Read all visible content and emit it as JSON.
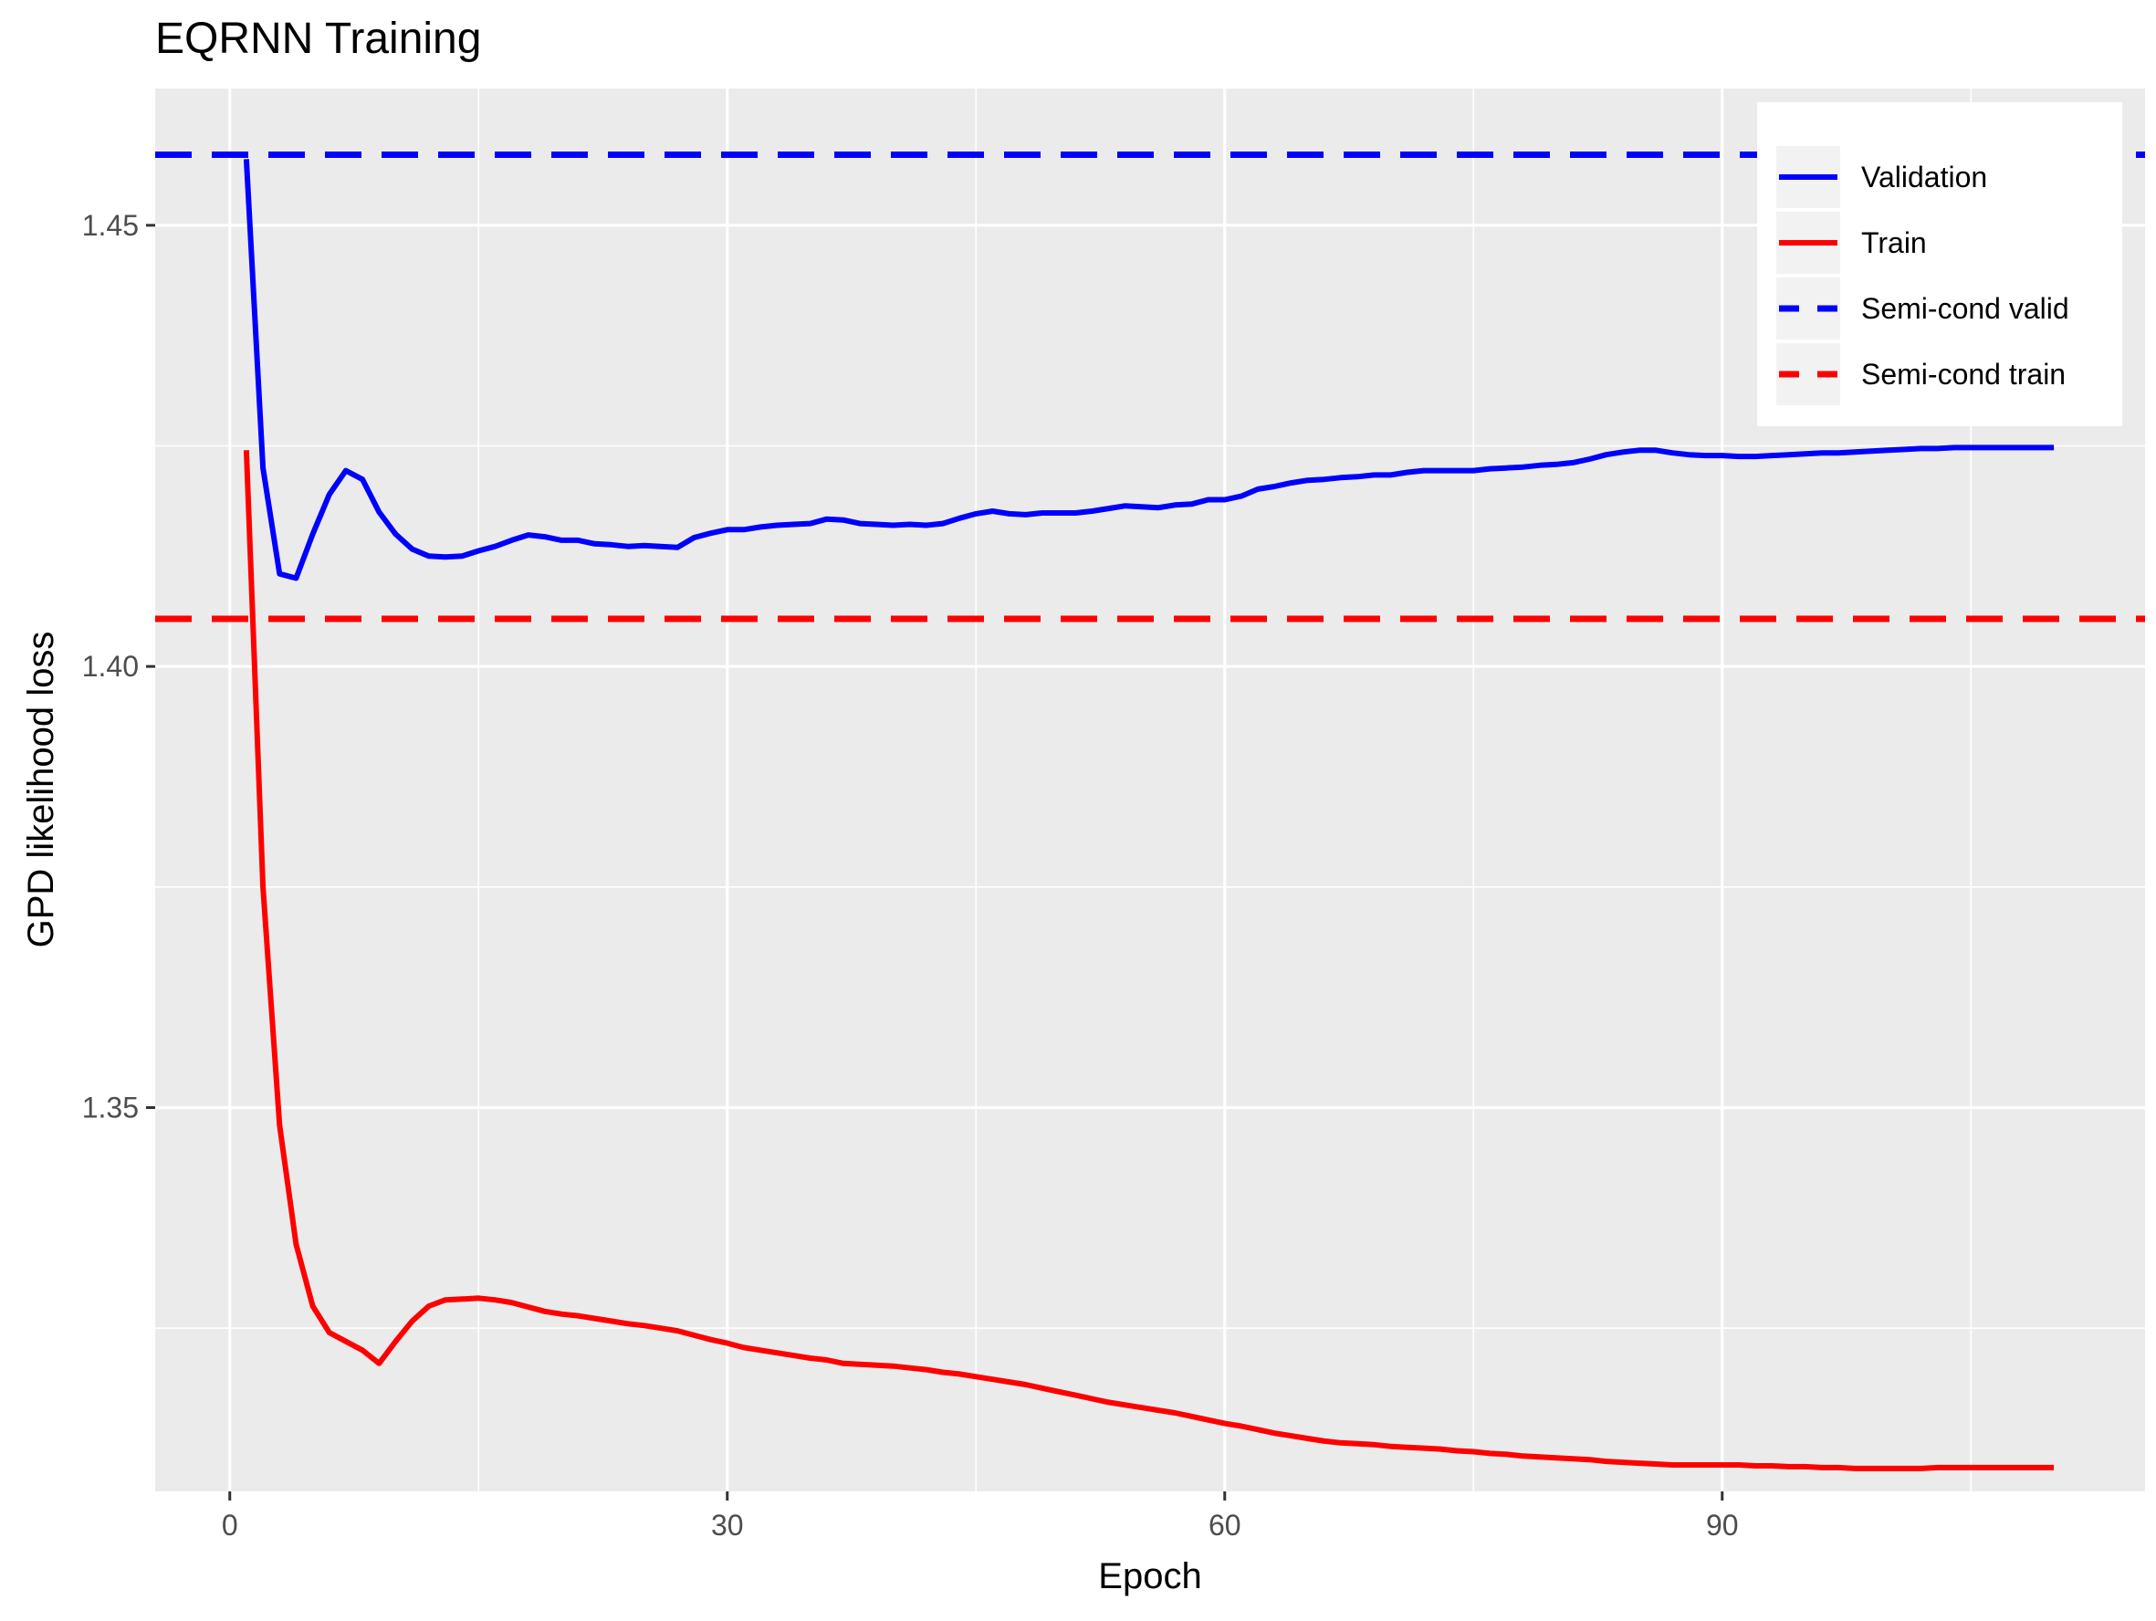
{
  "chart_data": {
    "type": "line",
    "title": "EQRNN Training",
    "xlabel": "Epoch",
    "ylabel": "GPD likelihood loss",
    "xlim": [
      -4.5,
      115.5
    ],
    "ylim": [
      1.3065,
      1.4655
    ],
    "x_ticks": [
      0,
      30,
      60,
      90
    ],
    "y_ticks": [
      1.35,
      1.4,
      1.45
    ],
    "x_tick_labels": [
      "0",
      "30",
      "60",
      "90"
    ],
    "y_tick_labels": [
      "1.35",
      "1.40",
      "1.45"
    ],
    "grid": true,
    "legend_position": "top-right",
    "series": [
      {
        "name": "Validation",
        "color": "#0000ff",
        "style": "solid",
        "x": [
          1,
          2,
          3,
          4,
          5,
          6,
          7,
          8,
          9,
          10,
          11,
          12,
          13,
          14,
          15,
          16,
          17,
          18,
          19,
          20,
          21,
          22,
          23,
          24,
          25,
          26,
          27,
          28,
          29,
          30,
          31,
          32,
          33,
          34,
          35,
          36,
          37,
          38,
          39,
          40,
          41,
          42,
          43,
          44,
          45,
          46,
          47,
          48,
          49,
          50,
          51,
          52,
          53,
          54,
          55,
          56,
          57,
          58,
          59,
          60,
          61,
          62,
          63,
          64,
          65,
          66,
          67,
          68,
          69,
          70,
          71,
          72,
          73,
          74,
          75,
          76,
          77,
          78,
          79,
          80,
          81,
          82,
          83,
          84,
          85,
          86,
          87,
          88,
          89,
          90,
          91,
          92,
          93,
          94,
          95,
          96,
          97,
          98,
          99,
          100,
          101,
          102,
          103,
          104,
          105,
          106,
          107,
          108,
          109,
          110
        ],
        "y": [
          1.4575,
          1.4225,
          1.4105,
          1.41,
          1.415,
          1.4195,
          1.4222,
          1.4212,
          1.4175,
          1.415,
          1.4133,
          1.4125,
          1.4124,
          1.4125,
          1.4131,
          1.4136,
          1.4143,
          1.4149,
          1.4147,
          1.4143,
          1.4143,
          1.4139,
          1.4138,
          1.4136,
          1.4137,
          1.4136,
          1.4135,
          1.4146,
          1.4151,
          1.4155,
          1.4155,
          1.4158,
          1.416,
          1.4161,
          1.4162,
          1.4167,
          1.4166,
          1.4162,
          1.4161,
          1.416,
          1.4161,
          1.416,
          1.4162,
          1.4168,
          1.4173,
          1.4176,
          1.4173,
          1.4172,
          1.4174,
          1.4174,
          1.4174,
          1.4176,
          1.4179,
          1.4182,
          1.4181,
          1.418,
          1.4183,
          1.4184,
          1.4189,
          1.4189,
          1.4193,
          1.4201,
          1.4204,
          1.4208,
          1.4211,
          1.4212,
          1.4214,
          1.4215,
          1.4217,
          1.4217,
          1.422,
          1.4222,
          1.4222,
          1.4222,
          1.4222,
          1.4224,
          1.4225,
          1.4226,
          1.4228,
          1.4229,
          1.4231,
          1.4235,
          1.424,
          1.4243,
          1.4245,
          1.4245,
          1.4242,
          1.424,
          1.4239,
          1.4239,
          1.4238,
          1.4238,
          1.4239,
          1.424,
          1.4241,
          1.4242,
          1.4242,
          1.4243,
          1.4244,
          1.4245,
          1.4246,
          1.4247,
          1.4247,
          1.4248,
          1.4248,
          1.4248,
          1.4248,
          1.4248,
          1.4248,
          1.4248
        ]
      },
      {
        "name": "Train",
        "color": "#ff0000",
        "style": "solid",
        "x": [
          1,
          2,
          3,
          4,
          5,
          6,
          7,
          8,
          9,
          10,
          11,
          12,
          13,
          14,
          15,
          16,
          17,
          18,
          19,
          20,
          21,
          22,
          23,
          24,
          25,
          26,
          27,
          28,
          29,
          30,
          31,
          32,
          33,
          34,
          35,
          36,
          37,
          38,
          39,
          40,
          41,
          42,
          43,
          44,
          45,
          46,
          47,
          48,
          49,
          50,
          51,
          52,
          53,
          54,
          55,
          56,
          57,
          58,
          59,
          60,
          61,
          62,
          63,
          64,
          65,
          66,
          67,
          68,
          69,
          70,
          71,
          72,
          73,
          74,
          75,
          76,
          77,
          78,
          79,
          80,
          81,
          82,
          83,
          84,
          85,
          86,
          87,
          88,
          89,
          90,
          91,
          92,
          93,
          94,
          95,
          96,
          97,
          98,
          99,
          100,
          101,
          102,
          103,
          104,
          105,
          106,
          107,
          108,
          109,
          110
        ],
        "y": [
          1.4245,
          1.375,
          1.348,
          1.3345,
          1.3275,
          1.3245,
          1.3235,
          1.3225,
          1.321,
          1.3235,
          1.3258,
          1.3275,
          1.3282,
          1.3283,
          1.3284,
          1.3282,
          1.3279,
          1.3274,
          1.3269,
          1.3266,
          1.3264,
          1.3261,
          1.3258,
          1.3255,
          1.3253,
          1.325,
          1.3247,
          1.3242,
          1.3237,
          1.3233,
          1.3228,
          1.3225,
          1.3222,
          1.3219,
          1.3216,
          1.3214,
          1.321,
          1.3209,
          1.3208,
          1.3207,
          1.3205,
          1.3203,
          1.32,
          1.3198,
          1.3195,
          1.3192,
          1.3189,
          1.3186,
          1.3182,
          1.3178,
          1.3174,
          1.317,
          1.3166,
          1.3163,
          1.316,
          1.3157,
          1.3154,
          1.315,
          1.3146,
          1.3142,
          1.3139,
          1.3135,
          1.3131,
          1.3128,
          1.3125,
          1.3122,
          1.312,
          1.3119,
          1.3118,
          1.3116,
          1.3115,
          1.3114,
          1.3113,
          1.3111,
          1.311,
          1.3108,
          1.3107,
          1.3105,
          1.3104,
          1.3103,
          1.3102,
          1.3101,
          1.3099,
          1.3098,
          1.3097,
          1.3096,
          1.3095,
          1.3095,
          1.3095,
          1.3095,
          1.3095,
          1.3094,
          1.3094,
          1.3093,
          1.3093,
          1.3092,
          1.3092,
          1.3091,
          1.3091,
          1.3091,
          1.3091,
          1.3091,
          1.3092,
          1.3092,
          1.3092,
          1.3092,
          1.3092,
          1.3092,
          1.3092,
          1.3092
        ]
      },
      {
        "name": "Semi-cond valid",
        "color": "#0000ff",
        "style": "dashed",
        "hline": 1.458
      },
      {
        "name": "Semi-cond train",
        "color": "#ff0000",
        "style": "dashed",
        "hline": 1.4054
      }
    ]
  }
}
